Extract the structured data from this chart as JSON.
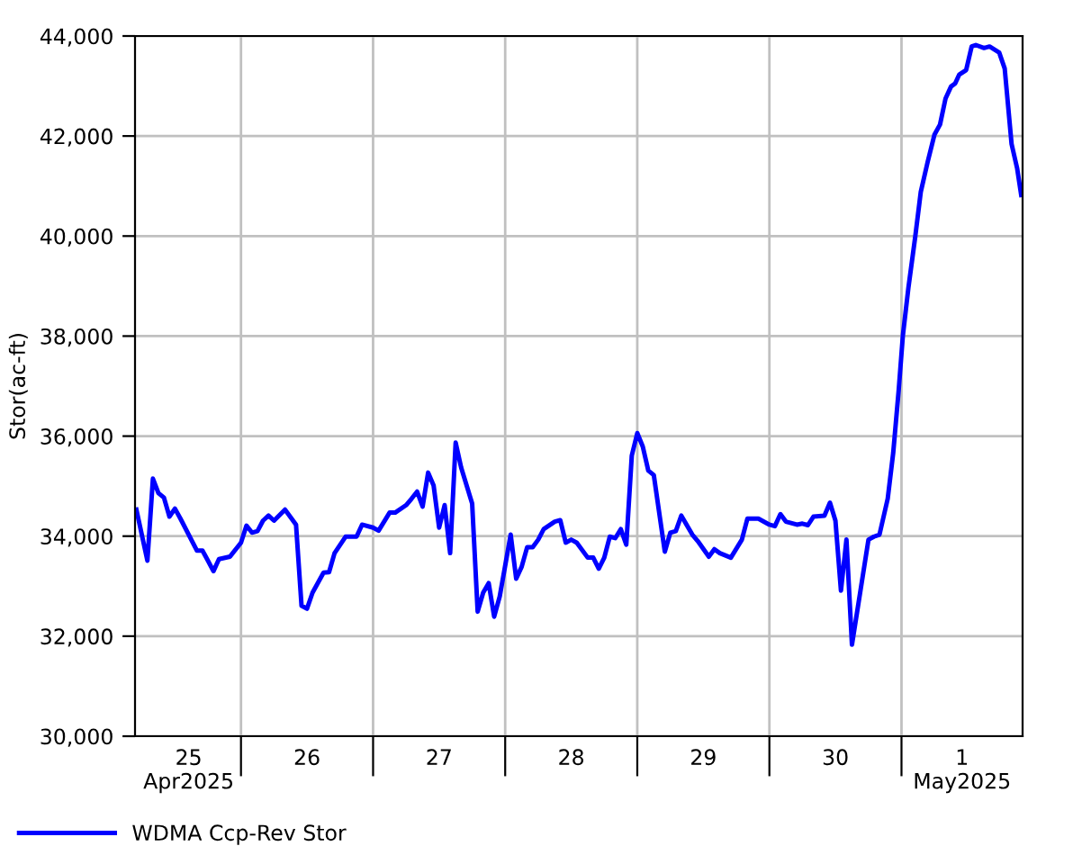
{
  "chart_data": {
    "type": "line",
    "ylabel": "Stor(ac-ft)",
    "legend": "bottom left",
    "grid": true,
    "line_style": "solid",
    "marker": "none",
    "xlim": [
      "2025-04-25T04:45",
      "2025-05-01T22:00"
    ],
    "ylim": [
      30000,
      44000
    ],
    "yticks": [
      {
        "value": 30000,
        "label": "30,000"
      },
      {
        "value": 32000,
        "label": "32,000"
      },
      {
        "value": 34000,
        "label": "34,000"
      },
      {
        "value": 36000,
        "label": "36,000"
      },
      {
        "value": 38000,
        "label": "38,000"
      },
      {
        "value": 40000,
        "label": "40,000"
      },
      {
        "value": 42000,
        "label": "42,000"
      },
      {
        "value": 44000,
        "label": "44,000"
      }
    ],
    "xticks": [
      {
        "value": "2025-04-26T00:00",
        "label": null
      },
      {
        "value": "2025-04-27T00:00",
        "label": null
      },
      {
        "value": "2025-04-28T00:00",
        "label": null
      },
      {
        "value": "2025-04-29T00:00",
        "label": null
      },
      {
        "value": "2025-04-30T00:00",
        "label": null
      },
      {
        "value": "2025-05-01T00:00",
        "label": null
      },
      {
        "value": "2025-04-25T14:30",
        "label": "25\nApr2025"
      },
      {
        "value": "2025-04-26T12:00",
        "label": "26"
      },
      {
        "value": "2025-04-27T12:00",
        "label": "27"
      },
      {
        "value": "2025-04-28T12:00",
        "label": "28"
      },
      {
        "value": "2025-04-29T12:00",
        "label": "29"
      },
      {
        "value": "2025-04-30T12:00",
        "label": "30"
      },
      {
        "value": "2025-05-01T11:00",
        "label": "1\nMay2025"
      }
    ],
    "series": [
      {
        "name": "WDMA Ccp-Rev Stor",
        "color": "#0000ff",
        "x": [
          "2025-04-25T05:00",
          "2025-04-25T07:00",
          "2025-04-25T08:00",
          "2025-04-25T09:00",
          "2025-04-25T10:00",
          "2025-04-25T11:00",
          "2025-04-25T12:00",
          "2025-04-25T13:00",
          "2025-04-25T16:00",
          "2025-04-25T17:00",
          "2025-04-25T18:00",
          "2025-04-25T19:00",
          "2025-04-25T20:00",
          "2025-04-25T22:00",
          "2025-04-26T00:00",
          "2025-04-26T01:00",
          "2025-04-26T02:00",
          "2025-04-26T03:00",
          "2025-04-26T04:00",
          "2025-04-26T05:00",
          "2025-04-26T06:00",
          "2025-04-26T08:00",
          "2025-04-26T10:00",
          "2025-04-26T11:00",
          "2025-04-26T12:00",
          "2025-04-26T13:00",
          "2025-04-26T15:00",
          "2025-04-26T16:00",
          "2025-04-26T17:00",
          "2025-04-26T19:00",
          "2025-04-26T21:00",
          "2025-04-26T22:00",
          "2025-04-27T00:00",
          "2025-04-27T01:00",
          "2025-04-27T03:00",
          "2025-04-27T04:00",
          "2025-04-27T06:00",
          "2025-04-27T07:00",
          "2025-04-27T08:00",
          "2025-04-27T09:00",
          "2025-04-27T10:00",
          "2025-04-27T11:00",
          "2025-04-27T12:00",
          "2025-04-27T13:00",
          "2025-04-27T14:00",
          "2025-04-27T15:00",
          "2025-04-27T16:00",
          "2025-04-27T18:00",
          "2025-04-27T19:00",
          "2025-04-27T20:00",
          "2025-04-27T21:00",
          "2025-04-27T22:00",
          "2025-04-27T23:00",
          "2025-04-28T01:00",
          "2025-04-28T02:00",
          "2025-04-28T03:00",
          "2025-04-28T04:00",
          "2025-04-28T05:00",
          "2025-04-28T06:00",
          "2025-04-28T07:00",
          "2025-04-28T09:00",
          "2025-04-28T10:00",
          "2025-04-28T11:00",
          "2025-04-28T12:00",
          "2025-04-28T13:00",
          "2025-04-28T15:00",
          "2025-04-28T16:00",
          "2025-04-28T17:00",
          "2025-04-28T18:00",
          "2025-04-28T19:00",
          "2025-04-28T20:00",
          "2025-04-28T21:00",
          "2025-04-28T22:00",
          "2025-04-28T23:00",
          "2025-04-29T00:00",
          "2025-04-29T01:00",
          "2025-04-29T02:00",
          "2025-04-29T03:00",
          "2025-04-29T05:00",
          "2025-04-29T06:00",
          "2025-04-29T07:00",
          "2025-04-29T08:00",
          "2025-04-29T10:00",
          "2025-04-29T11:00",
          "2025-04-29T13:00",
          "2025-04-29T14:00",
          "2025-04-29T15:00",
          "2025-04-29T17:00",
          "2025-04-29T19:00",
          "2025-04-29T20:00",
          "2025-04-29T22:00",
          "2025-04-30T00:00",
          "2025-04-30T01:00",
          "2025-04-30T02:00",
          "2025-04-30T03:00",
          "2025-04-30T05:00",
          "2025-04-30T06:00",
          "2025-04-30T07:00",
          "2025-04-30T08:00",
          "2025-04-30T10:00",
          "2025-04-30T11:00",
          "2025-04-30T12:00",
          "2025-04-30T13:00",
          "2025-04-30T14:00",
          "2025-04-30T15:00",
          "2025-04-30T18:00",
          "2025-04-30T19:00",
          "2025-04-30T20:00",
          "2025-04-30T21:30",
          "2025-04-30T22:30",
          "2025-04-30T23:30",
          "2025-05-01T00:15",
          "2025-05-01T01:15",
          "2025-05-01T02:30",
          "2025-05-01T03:30",
          "2025-05-01T04:45",
          "2025-05-01T06:00",
          "2025-05-01T07:00",
          "2025-05-01T08:00",
          "2025-05-01T09:00",
          "2025-05-01T09:45",
          "2025-05-01T10:30",
          "2025-05-01T11:45",
          "2025-05-01T12:45",
          "2025-05-01T13:30",
          "2025-05-01T15:00",
          "2025-05-01T16:00",
          "2025-05-01T17:45",
          "2025-05-01T18:45",
          "2025-05-01T20:00",
          "2025-05-01T21:00",
          "2025-05-01T21:45"
        ],
        "values": [
          34530,
          33510,
          35150,
          34860,
          34770,
          34390,
          34550,
          34350,
          33710,
          33710,
          33510,
          33300,
          33540,
          33590,
          33870,
          34210,
          34070,
          34100,
          34310,
          34410,
          34310,
          34530,
          34230,
          32610,
          32550,
          32870,
          33270,
          33280,
          33660,
          33990,
          33990,
          34230,
          34170,
          34110,
          34470,
          34470,
          34620,
          34750,
          34890,
          34590,
          35270,
          35010,
          34170,
          34620,
          33660,
          35870,
          35370,
          34650,
          32490,
          32870,
          33060,
          32390,
          32790,
          34030,
          33150,
          33390,
          33780,
          33780,
          33930,
          34140,
          34290,
          34320,
          33870,
          33930,
          33870,
          33570,
          33570,
          33350,
          33570,
          33990,
          33960,
          34140,
          33830,
          35610,
          36060,
          35790,
          35310,
          35220,
          33690,
          34070,
          34100,
          34410,
          34030,
          33900,
          33590,
          33740,
          33660,
          33570,
          33930,
          34350,
          34350,
          34230,
          34200,
          34440,
          34290,
          34230,
          34250,
          34220,
          34390,
          34410,
          34670,
          34310,
          32910,
          33930,
          31830,
          33930,
          33990,
          34030,
          34750,
          35670,
          36930,
          38010,
          38960,
          39990,
          40880,
          41480,
          42030,
          42230,
          42750,
          42990,
          43050,
          43230,
          43320,
          43790,
          43820,
          43760,
          43790,
          43670,
          43350,
          41840,
          41360,
          40820
        ]
      }
    ]
  }
}
